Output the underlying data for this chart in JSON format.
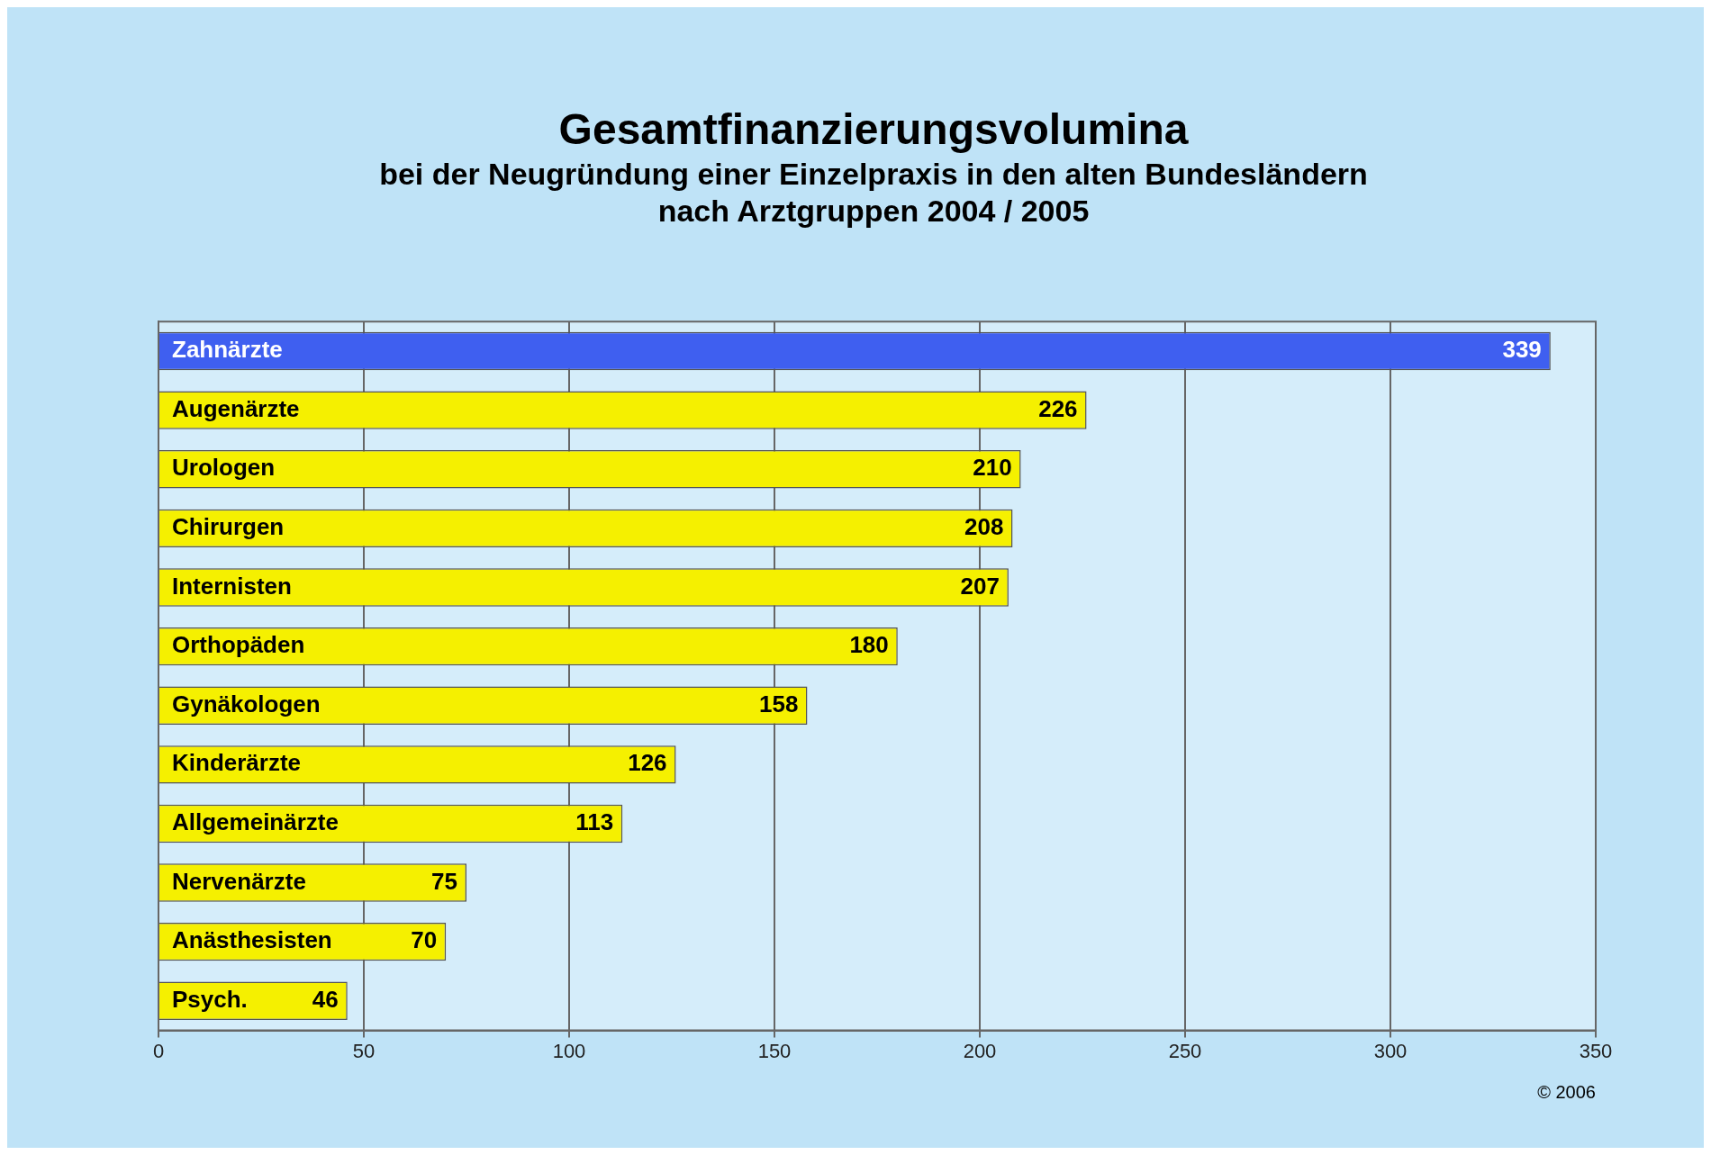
{
  "chart_data": {
    "type": "bar",
    "orientation": "horizontal",
    "title": "Gesamtfinanzierungsvolumina",
    "subtitle": "bei der Neugründung einer Einzelpraxis in den alten Bundesländern\nnach Arztgruppen 2004 / 2005",
    "categories": [
      "Zahnärzte",
      "Augenärzte",
      "Urologen",
      "Chirurgen",
      "Internisten",
      "Orthopäden",
      "Gynäkologen",
      "Kinderärzte",
      "Allgemeinärzte",
      "Nervenärzte",
      "Anästhesisten",
      "Psych."
    ],
    "values": [
      339,
      226,
      210,
      208,
      207,
      180,
      158,
      126,
      113,
      75,
      70,
      46
    ],
    "colors": [
      "#3f5ff0",
      "#f5f000",
      "#f5f000",
      "#f5f000",
      "#f5f000",
      "#f5f000",
      "#f5f000",
      "#f5f000",
      "#f5f000",
      "#f5f000",
      "#f5f000",
      "#f5f000"
    ],
    "xlim": [
      0,
      350
    ],
    "xticks": [
      0,
      50,
      100,
      150,
      200,
      250,
      300,
      350
    ],
    "grid": "x",
    "data_labels": true,
    "annotations": [
      "© 2006"
    ]
  }
}
